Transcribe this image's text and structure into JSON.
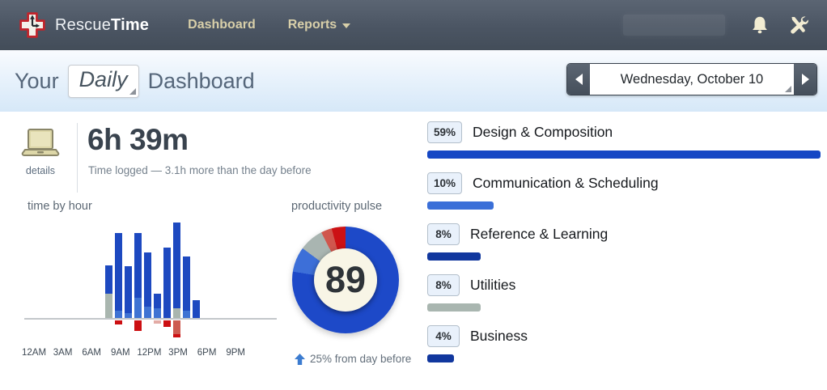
{
  "nav": {
    "brand_light": "Rescue",
    "brand_bold": "Time",
    "links": [
      {
        "label": "Dashboard"
      },
      {
        "label": "Reports",
        "has_dropdown": true
      }
    ]
  },
  "subheader": {
    "title_prefix": "Your",
    "period_selector": "Daily",
    "title_suffix": "Dashboard",
    "date_label": "Wednesday, October 10"
  },
  "summary": {
    "details_label": "details",
    "time_logged": "6h 39m",
    "caption": "Time logged — 3.1h more than the day before"
  },
  "chart_data": [
    {
      "type": "bar",
      "title": "time by hour",
      "stacked": true,
      "units": "relative height, 100 = tallest bar (no y-axis labels shown)",
      "x_axis": {
        "tick_labels": [
          "12AM",
          "3AM",
          "6AM",
          "9AM",
          "12PM",
          "3PM",
          "6PM",
          "9PM"
        ]
      },
      "category_colors": {
        "very-productive": "#1d49c0",
        "productive": "#3f73d3",
        "neutral": "#a9b6af",
        "distracting": "#cd5b51",
        "distracting-faint": "#e3aba5",
        "very-distracting": "#cc0f12"
      },
      "bars": [
        {
          "hour": "8AM",
          "above": [
            {
              "category": "neutral",
              "value": 25
            },
            {
              "category": "very-productive",
              "value": 30
            }
          ],
          "below": []
        },
        {
          "hour": "9AM",
          "above": [
            {
              "category": "productive",
              "value": 8
            },
            {
              "category": "very-productive",
              "value": 81
            }
          ],
          "below": [
            {
              "category": "very-distracting",
              "value": 4
            }
          ]
        },
        {
          "hour": "10AM",
          "above": [
            {
              "category": "productive",
              "value": 5
            },
            {
              "category": "very-productive",
              "value": 49
            }
          ],
          "below": []
        },
        {
          "hour": "11AM",
          "above": [
            {
              "category": "productive",
              "value": 21
            },
            {
              "category": "very-productive",
              "value": 68
            }
          ],
          "below": [
            {
              "category": "very-distracting",
              "value": 11
            }
          ]
        },
        {
          "hour": "12PM",
          "above": [
            {
              "category": "productive",
              "value": 12
            },
            {
              "category": "very-productive",
              "value": 57
            }
          ],
          "below": []
        },
        {
          "hour": "1PM",
          "above": [
            {
              "category": "productive",
              "value": 10
            },
            {
              "category": "very-productive",
              "value": 15
            }
          ],
          "below": [
            {
              "category": "distracting-faint",
              "value": 3
            }
          ]
        },
        {
          "hour": "2PM",
          "above": [
            {
              "category": "very-productive",
              "value": 74
            }
          ],
          "below": [
            {
              "category": "very-distracting",
              "value": 7
            }
          ]
        },
        {
          "hour": "3PM",
          "above": [
            {
              "category": "neutral",
              "value": 10
            },
            {
              "category": "very-productive",
              "value": 90
            }
          ],
          "below": [
            {
              "category": "distracting",
              "value": 14
            },
            {
              "category": "very-distracting",
              "value": 3
            }
          ]
        },
        {
          "hour": "4PM",
          "above": [
            {
              "category": "productive",
              "value": 8
            },
            {
              "category": "very-productive",
              "value": 57
            }
          ],
          "below": []
        },
        {
          "hour": "5PM",
          "above": [
            {
              "category": "very-productive",
              "value": 19
            }
          ],
          "below": []
        }
      ]
    },
    {
      "type": "pie",
      "subtype": "donut",
      "title": "productivity pulse",
      "center_value": "89",
      "direction": "clockwise-from-top",
      "segments": [
        {
          "name": "very-productive",
          "percent": 77.5,
          "color": "#1d49c8"
        },
        {
          "name": "productive",
          "percent": 7.6,
          "color": "#3d6fd8"
        },
        {
          "name": "neutral",
          "percent": 7.4,
          "color": "#a9b5b1"
        },
        {
          "name": "distracting",
          "percent": 3.3,
          "color": "#d0564d"
        },
        {
          "name": "very-distracting",
          "percent": 4.2,
          "color": "#cc1114"
        }
      ],
      "footnote": {
        "arrow": "up",
        "text": "25% from day before"
      }
    }
  ],
  "categories": {
    "max_percent": 59,
    "rows": [
      {
        "percent_label": "59%",
        "value": 59,
        "label": "Design & Composition",
        "color": "#1547c4"
      },
      {
        "percent_label": "10%",
        "value": 10,
        "label": "Communication & Scheduling",
        "color": "#3a6fd8"
      },
      {
        "percent_label": "8%",
        "value": 8,
        "label": "Reference & Learning",
        "color": "#11379e"
      },
      {
        "percent_label": "8%",
        "value": 8,
        "label": "Utilities",
        "color": "#a9b6b0"
      },
      {
        "percent_label": "4%",
        "value": 4,
        "label": "Business",
        "color": "#11379e"
      }
    ]
  }
}
